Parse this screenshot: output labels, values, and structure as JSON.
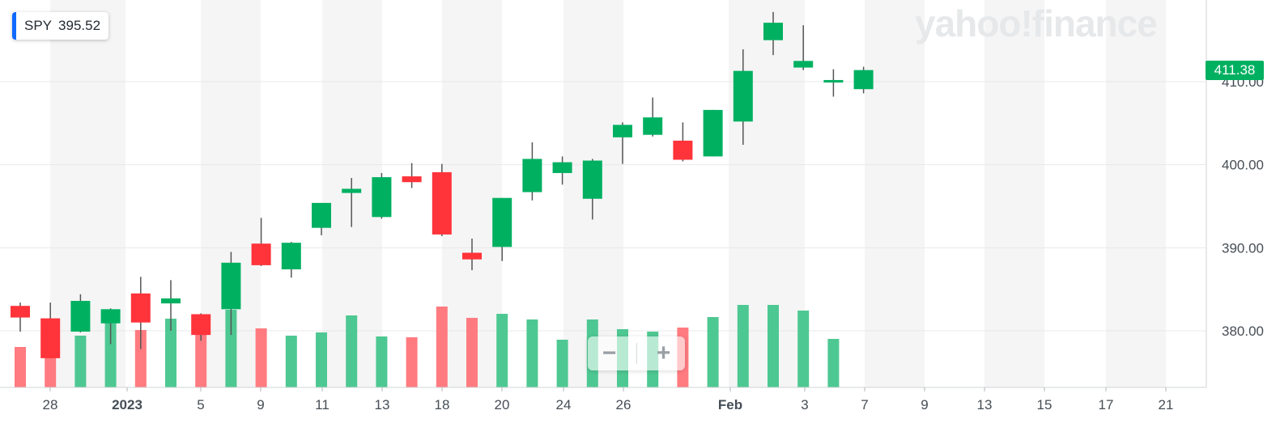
{
  "legend": {
    "symbol": "SPY",
    "value": "395.52"
  },
  "watermark": "yahoo!finance",
  "zoom": {
    "minus_label": "−",
    "plus_label": "+"
  },
  "last_price_label": "411.38",
  "colors": {
    "up": "#00b061",
    "down": "#ff333a",
    "up_volume": "#4ec892",
    "down_volume": "#ff7b80",
    "band": "#f5f5f5",
    "accent": "#0f69ff"
  },
  "chart_data": {
    "type": "candlestick",
    "y_axis": {
      "ticks": [
        380,
        390,
        400,
        410
      ],
      "tick_labels": [
        "380.00",
        "390.00",
        "400.00",
        "410.00"
      ],
      "range": [
        373,
        421
      ]
    },
    "x_axis": {
      "labels": [
        "28",
        "2023",
        "5",
        "9",
        "11",
        "13",
        "18",
        "20",
        "24",
        "26",
        "Feb",
        "3",
        "7",
        "9",
        "13",
        "15",
        "17",
        "21"
      ],
      "label_slots": [
        1,
        4,
        6,
        8,
        10,
        12,
        14,
        16,
        18,
        20,
        23,
        26,
        28,
        30,
        32,
        34,
        36,
        38
      ]
    },
    "candles": [
      {
        "o": 383.0,
        "h": 383.4,
        "l": 379.9,
        "c": 381.6,
        "v": 50
      },
      {
        "o": 381.5,
        "h": 383.4,
        "l": 376.7,
        "c": 376.7,
        "v": 71
      },
      {
        "o": 379.9,
        "h": 384.4,
        "l": 379.8,
        "c": 383.6,
        "v": 64
      },
      {
        "o": 380.9,
        "h": 382.7,
        "l": 378.4,
        "c": 382.6,
        "v": 82
      },
      {
        "o": 384.5,
        "h": 386.5,
        "l": 377.8,
        "c": 381.0,
        "v": 71
      },
      {
        "o": 383.3,
        "h": 386.1,
        "l": 380.0,
        "c": 383.9,
        "v": 85
      },
      {
        "o": 382.0,
        "h": 382.1,
        "l": 378.8,
        "c": 379.5,
        "v": 66
      },
      {
        "o": 382.6,
        "h": 389.5,
        "l": 379.5,
        "c": 388.2,
        "v": 96
      },
      {
        "o": 390.5,
        "h": 393.6,
        "l": 387.8,
        "c": 387.9,
        "v": 73
      },
      {
        "o": 387.4,
        "h": 390.7,
        "l": 386.4,
        "c": 390.6,
        "v": 64
      },
      {
        "o": 392.4,
        "h": 395.4,
        "l": 391.5,
        "c": 395.4,
        "v": 68
      },
      {
        "o": 396.6,
        "h": 398.4,
        "l": 392.5,
        "c": 397.1,
        "v": 89
      },
      {
        "o": 393.7,
        "h": 399.0,
        "l": 393.5,
        "c": 398.5,
        "v": 63
      },
      {
        "o": 398.6,
        "h": 400.2,
        "l": 397.2,
        "c": 397.9,
        "v": 62
      },
      {
        "o": 399.1,
        "h": 400.1,
        "l": 391.4,
        "c": 391.6,
        "v": 100
      },
      {
        "o": 389.4,
        "h": 391.1,
        "l": 387.3,
        "c": 388.6,
        "v": 86
      },
      {
        "o": 390.1,
        "h": 396.0,
        "l": 388.4,
        "c": 396.0,
        "v": 91
      },
      {
        "o": 396.7,
        "h": 402.7,
        "l": 395.7,
        "c": 400.7,
        "v": 84
      },
      {
        "o": 399.0,
        "h": 401.0,
        "l": 397.6,
        "c": 400.3,
        "v": 59
      },
      {
        "o": 395.9,
        "h": 400.7,
        "l": 393.4,
        "c": 400.5,
        "v": 84
      },
      {
        "o": 403.3,
        "h": 405.1,
        "l": 400.1,
        "c": 404.8,
        "v": 72
      },
      {
        "o": 403.6,
        "h": 408.1,
        "l": 403.4,
        "c": 405.7,
        "v": 69
      },
      {
        "o": 402.9,
        "h": 405.1,
        "l": 400.4,
        "c": 400.6,
        "v": 74
      },
      {
        "o": 401.0,
        "h": 406.6,
        "l": 401.0,
        "c": 406.6,
        "v": 87
      },
      {
        "o": 405.2,
        "h": 413.9,
        "l": 402.4,
        "c": 411.3,
        "v": 102
      },
      {
        "o": 415.0,
        "h": 418.4,
        "l": 413.2,
        "c": 417.1,
        "v": 102
      },
      {
        "o": 411.7,
        "h": 416.8,
        "l": 411.4,
        "c": 412.5,
        "v": 95
      },
      {
        "o": 409.9,
        "h": 411.5,
        "l": 408.2,
        "c": 410.2,
        "v": 60
      },
      {
        "o": 409.1,
        "h": 411.8,
        "l": 408.6,
        "c": 411.4,
        "v": 0
      }
    ]
  }
}
